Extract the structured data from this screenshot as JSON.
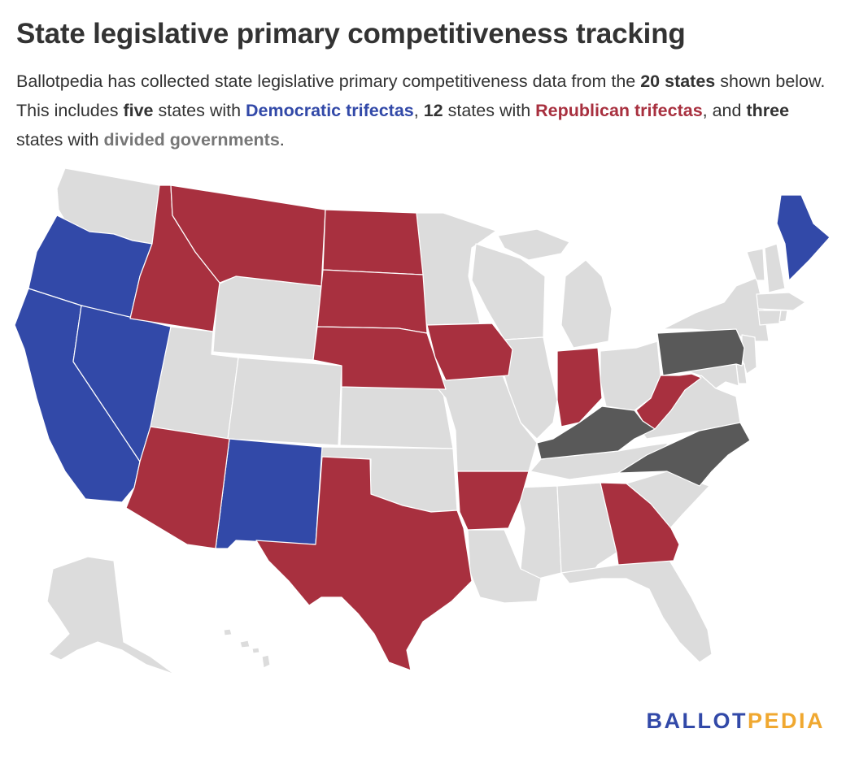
{
  "title": "State legislative primary competitiveness tracking",
  "subtitle": {
    "p1": "Ballotpedia has collected state legislative primary competitiveness data from the ",
    "count_total": "20 states",
    "p2": " shown below. This includes ",
    "count_dem": "five",
    "p3": " states with ",
    "label_dem": "Democratic trifectas",
    "p4": ", ",
    "count_rep": "12",
    "p5": " states with ",
    "label_rep": "Republican trifectas",
    "p6": ", and ",
    "count_div": "three",
    "p7": " states with ",
    "label_div": "divided governments",
    "p8": "."
  },
  "colors": {
    "democratic": "#3249a8",
    "republican": "#a8303f",
    "divided": "#595959",
    "not_tracked": "#dcdcdc",
    "border": "#ffffff"
  },
  "map": {
    "categories": {
      "democratic": [
        "Oregon",
        "California",
        "Nevada",
        "New Mexico",
        "Maine"
      ],
      "republican": [
        "Idaho",
        "Montana",
        "North Dakota",
        "South Dakota",
        "Nebraska",
        "Iowa",
        "Arizona",
        "Texas",
        "Arkansas",
        "Indiana",
        "West Virginia",
        "Georgia"
      ],
      "divided": [
        "Pennsylvania",
        "Kentucky",
        "North Carolina"
      ]
    }
  },
  "logo": {
    "part1": "BALLOT",
    "part2": "PEDIA"
  }
}
